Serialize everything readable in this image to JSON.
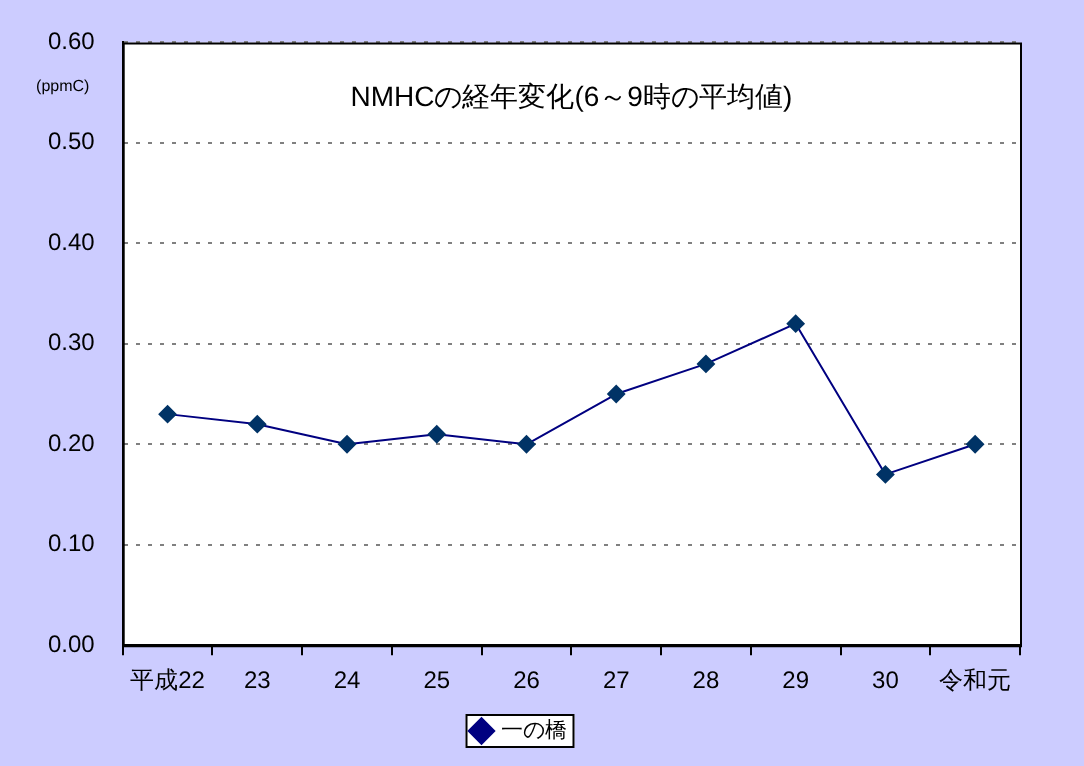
{
  "chart_data": {
    "type": "line",
    "title": "NMHCの経年変化(6～9時の平均値)",
    "ylabel": "(ppmC)",
    "categories": [
      "平成22",
      "23",
      "24",
      "25",
      "26",
      "27",
      "28",
      "29",
      "30",
      "令和元"
    ],
    "series": [
      {
        "name": "一の橋",
        "color": "#000080",
        "values": [
          0.23,
          0.22,
          0.2,
          0.21,
          0.2,
          0.25,
          0.28,
          0.32,
          0.17,
          0.2
        ]
      }
    ],
    "ylim": [
      0,
      0.6
    ],
    "yticks": [
      {
        "value": 0,
        "label": "0.00"
      },
      {
        "value": 0.1,
        "label": "0.10"
      },
      {
        "value": 0.2,
        "label": "0.20"
      },
      {
        "value": 0.3,
        "label": "0.30"
      },
      {
        "value": 0.4,
        "label": "0.40"
      },
      {
        "value": 0.5,
        "label": "0.50"
      },
      {
        "value": 0.6,
        "label": "0.60"
      }
    ],
    "grid": "y",
    "legend": "bottom",
    "marker": "diamond",
    "line_style": "solid"
  }
}
